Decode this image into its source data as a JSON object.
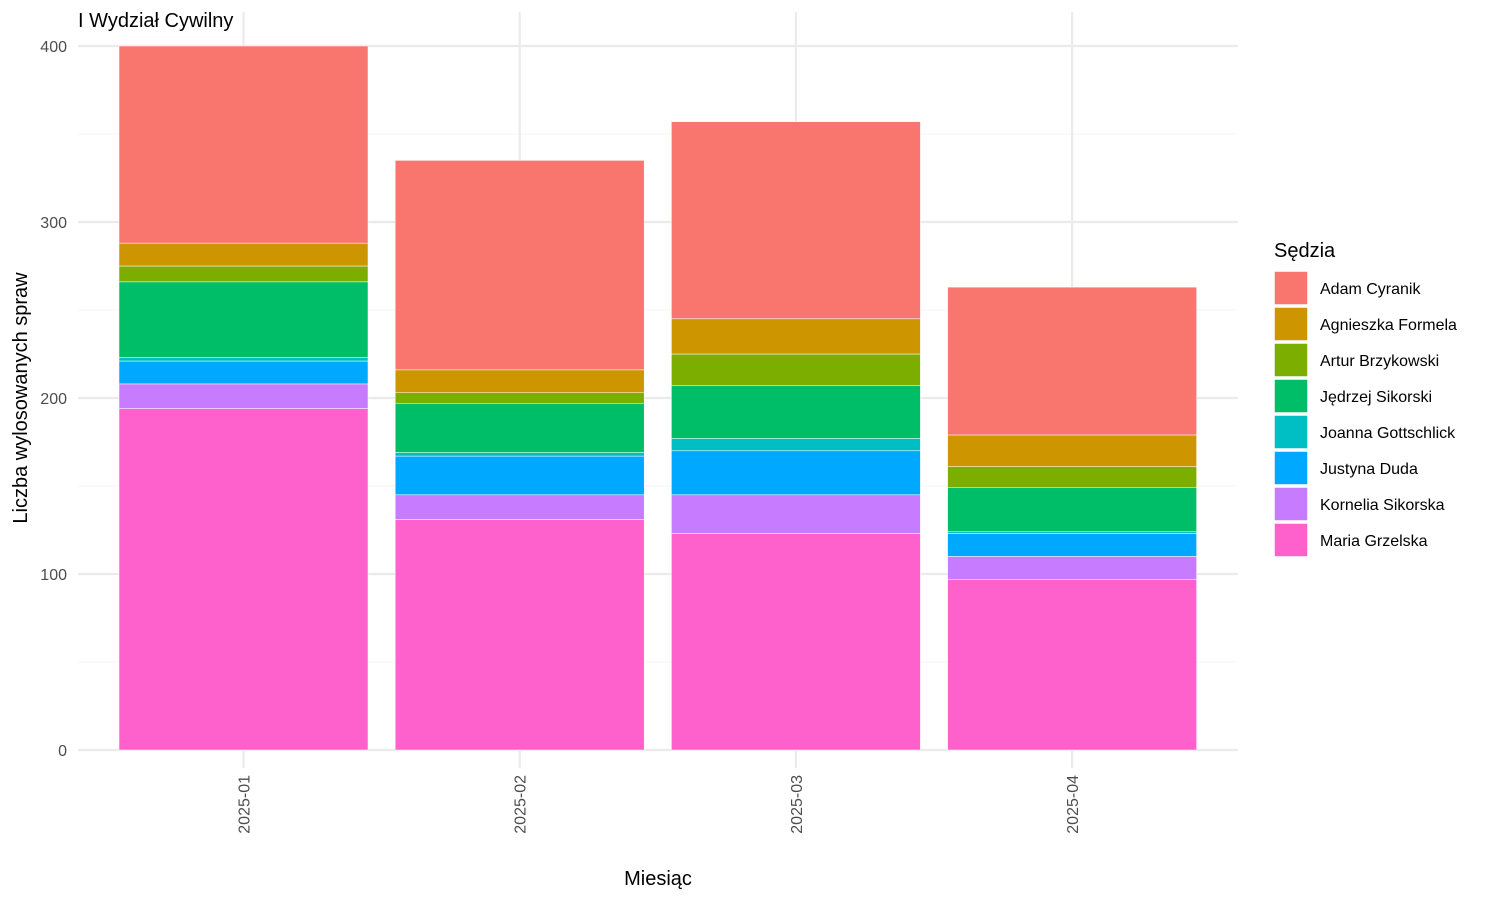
{
  "chart_data": {
    "type": "bar",
    "stacked": true,
    "title": "I Wydział Cywilny",
    "xlabel": "Miesiąc",
    "ylabel": "Liczba wylosowanych spraw",
    "categories": [
      "2025-01",
      "2025-02",
      "2025-03",
      "2025-04"
    ],
    "ylim": [
      0,
      400
    ],
    "yticks": [
      0,
      100,
      200,
      300,
      400
    ],
    "grid": true,
    "legend_title": "Sędzia",
    "legend_position": "right",
    "series": [
      {
        "name": "Adam Cyranik",
        "color": "#F8766D",
        "values": [
          112,
          119,
          112,
          84
        ]
      },
      {
        "name": "Agnieszka Formela",
        "color": "#CD9600",
        "values": [
          13,
          13,
          20,
          18
        ]
      },
      {
        "name": "Artur Brzykowski",
        "color": "#7CAE00",
        "values": [
          9,
          6,
          18,
          12
        ]
      },
      {
        "name": "Jędrzej Sikorski",
        "color": "#00BE67",
        "values": [
          43,
          28,
          30,
          25
        ]
      },
      {
        "name": "Joanna Gottschlick",
        "color": "#00BFC4",
        "values": [
          2,
          2,
          7,
          1
        ]
      },
      {
        "name": "Justyna Duda",
        "color": "#00A9FF",
        "values": [
          13,
          22,
          25,
          13
        ]
      },
      {
        "name": "Kornelia Sikorska",
        "color": "#C77CFF",
        "values": [
          14,
          14,
          22,
          13
        ]
      },
      {
        "name": "Maria Grzelska",
        "color": "#FF61CC",
        "values": [
          194,
          131,
          123,
          97
        ]
      }
    ]
  }
}
